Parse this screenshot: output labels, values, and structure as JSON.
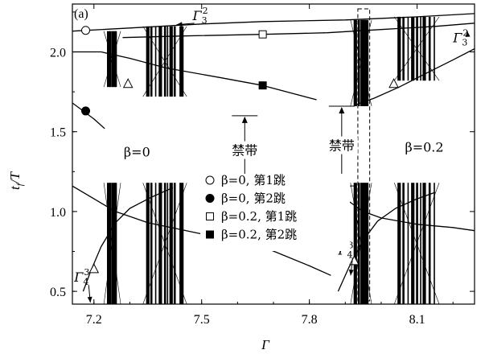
{
  "chart_data": {
    "type": "line",
    "panel_label": "(a)",
    "xlabel": "Γ",
    "ylabel": "t",
    "ylabel_sub": "f",
    "ylabel_tail": "/T",
    "xlim": [
      7.14,
      8.26
    ],
    "ylim": [
      0.42,
      2.3
    ],
    "x_ticks": [
      {
        "v": 7.2,
        "label": "7.2"
      },
      {
        "v": 7.5,
        "label": "7.5"
      },
      {
        "v": 7.8,
        "label": "7.8"
      },
      {
        "v": 8.1,
        "label": "8.1"
      }
    ],
    "y_ticks": [
      {
        "v": 0.5,
        "label": "0.5"
      },
      {
        "v": 1.0,
        "label": "1.0"
      },
      {
        "v": 1.5,
        "label": "1.5"
      },
      {
        "v": 2.0,
        "label": "2.0"
      }
    ],
    "curves": [
      {
        "id": "upper-first-jump",
        "points": [
          [
            7.14,
            2.13
          ],
          [
            7.3,
            2.15
          ],
          [
            7.5,
            2.175
          ],
          [
            7.67,
            2.19
          ],
          [
            7.9,
            2.2
          ],
          [
            8.1,
            2.22
          ],
          [
            8.26,
            2.24
          ]
        ]
      },
      {
        "id": "upper-second-jump",
        "points": [
          [
            7.28,
            2.09
          ],
          [
            7.45,
            2.1
          ],
          [
            7.67,
            2.11
          ],
          [
            7.85,
            2.12
          ],
          [
            8.0,
            2.14
          ],
          [
            8.15,
            2.16
          ],
          [
            8.26,
            2.18
          ]
        ]
      },
      {
        "id": "left-first-jump-falling",
        "points": [
          [
            7.14,
            2.0
          ],
          [
            7.22,
            2.0
          ],
          [
            7.3,
            1.96
          ],
          [
            7.4,
            1.9
          ],
          [
            7.55,
            1.84
          ],
          [
            7.67,
            1.79
          ],
          [
            7.82,
            1.7
          ]
        ]
      },
      {
        "id": "left-second-jump-falling",
        "points": [
          [
            7.14,
            1.68
          ],
          [
            7.17,
            1.63
          ],
          [
            7.2,
            1.58
          ],
          [
            7.23,
            1.52
          ]
        ]
      },
      {
        "id": "right-rising",
        "points": [
          [
            7.93,
            1.67
          ],
          [
            7.98,
            1.71
          ],
          [
            8.05,
            1.78
          ],
          [
            8.12,
            1.86
          ],
          [
            8.2,
            1.95
          ],
          [
            8.26,
            2.02
          ]
        ]
      },
      {
        "id": "lower-left-falling",
        "points": [
          [
            7.14,
            1.16
          ],
          [
            7.2,
            1.08
          ],
          [
            7.26,
            1.0
          ],
          [
            7.35,
            0.93
          ],
          [
            7.5,
            0.86
          ],
          [
            7.6,
            0.82
          ],
          [
            7.67,
            0.78
          ],
          [
            7.8,
            0.66
          ],
          [
            7.86,
            0.6
          ]
        ]
      },
      {
        "id": "lower-left-rising",
        "points": [
          [
            7.17,
            0.5
          ],
          [
            7.19,
            0.62
          ],
          [
            7.22,
            0.78
          ],
          [
            7.26,
            0.93
          ],
          [
            7.3,
            1.02
          ],
          [
            7.36,
            1.09
          ],
          [
            7.42,
            1.15
          ]
        ]
      },
      {
        "id": "lower-right-falling",
        "points": [
          [
            7.85,
            1.15
          ],
          [
            7.9,
            1.08
          ],
          [
            7.95,
            1.0
          ],
          [
            8.0,
            0.96
          ],
          [
            8.1,
            0.92
          ],
          [
            8.2,
            0.9
          ],
          [
            8.26,
            0.88
          ]
        ]
      },
      {
        "id": "lower-right-rising",
        "points": [
          [
            7.88,
            0.5
          ],
          [
            7.91,
            0.65
          ],
          [
            7.95,
            0.82
          ],
          [
            7.99,
            0.94
          ],
          [
            8.04,
            1.02
          ],
          [
            8.1,
            1.08
          ],
          [
            8.15,
            1.12
          ]
        ]
      }
    ],
    "bands": [
      {
        "xs": [
          7.241,
          7.246,
          7.251,
          7.256,
          7.261
        ],
        "y0": 0.42,
        "y1": 1.18
      },
      {
        "xs": [
          7.241,
          7.246,
          7.251,
          7.256,
          7.261
        ],
        "y0": 1.78,
        "y1": 2.13
      },
      {
        "xs": [
          7.35,
          7.36,
          7.372,
          7.385,
          7.398,
          7.405,
          7.415,
          7.425,
          7.44,
          7.445
        ],
        "y0": 0.42,
        "y1": 1.18
      },
      {
        "xs": [
          7.35,
          7.36,
          7.372,
          7.385,
          7.398,
          7.405,
          7.415,
          7.425,
          7.44,
          7.445
        ],
        "y0": 1.72,
        "y1": 2.16
      },
      {
        "xs": [
          7.928,
          7.938,
          7.944,
          7.948,
          7.952,
          7.956,
          7.96
        ],
        "y0": 0.42,
        "y1": 1.18
      },
      {
        "xs": [
          7.928,
          7.938,
          7.944,
          7.948,
          7.952,
          7.956,
          7.96
        ],
        "y0": 1.66,
        "y1": 2.2
      },
      {
        "xs": [
          8.05,
          8.062,
          8.075,
          8.088,
          8.1,
          8.11,
          8.12,
          8.135,
          8.148
        ],
        "y0": 0.42,
        "y1": 1.18
      },
      {
        "xs": [
          8.05,
          8.062,
          8.075,
          8.088,
          8.1,
          8.11,
          8.12,
          8.135,
          8.148
        ],
        "y0": 1.82,
        "y1": 2.22
      }
    ],
    "markers": [
      {
        "shape": "circle-open",
        "x": 7.177,
        "y": 2.135
      },
      {
        "shape": "circle-filled",
        "x": 7.177,
        "y": 1.63
      },
      {
        "shape": "square-open",
        "x": 7.67,
        "y": 2.11
      },
      {
        "shape": "square-filled",
        "x": 7.67,
        "y": 1.79
      },
      {
        "shape": "triangle-open",
        "x": 7.295,
        "y": 1.8
      },
      {
        "shape": "triangle-open",
        "x": 7.2,
        "y": 0.64
      },
      {
        "shape": "triangle-open",
        "x": 8.035,
        "y": 1.8
      },
      {
        "shape": "triangle-open",
        "x": 7.925,
        "y": 0.69
      }
    ],
    "gaps": [
      {
        "x": 7.62,
        "y_low": 1.16,
        "y_high": 1.6,
        "label": "禁带",
        "label_y": 1.37
      },
      {
        "x": 7.89,
        "y_low": 1.16,
        "y_high": 1.66,
        "label": "禁带",
        "label_y": 1.4
      }
    ],
    "region_labels": [
      {
        "text": "β=0",
        "x": 7.32,
        "y": 1.37
      },
      {
        "text": "β=0.2",
        "x": 8.12,
        "y": 1.4
      }
    ],
    "dashed_box": {
      "x0": 7.935,
      "x1": 7.968,
      "y0": 0.44,
      "y1": 2.27
    },
    "gamma_labels": [
      {
        "base": "Γ",
        "sub": "3",
        "sup": "2",
        "x": 7.475,
        "y": 2.2,
        "arrow_to": [
          7.43,
          2.17
        ]
      },
      {
        "base": "Γ",
        "sub": "3",
        "sup": "2",
        "x": 8.2,
        "y": 2.06,
        "arrow_to": [
          8.24,
          2.13
        ]
      },
      {
        "base": "Γ",
        "sub": "4",
        "sup": "3",
        "x": 7.145,
        "y": 0.56,
        "arrow_to": [
          7.19,
          0.43
        ]
      },
      {
        "base": "Γ",
        "sub": "4",
        "sup": "3",
        "x": 7.88,
        "y": 0.73,
        "arrow_to": [
          7.915,
          0.6
        ]
      }
    ],
    "legend": {
      "position": "center",
      "entries": [
        {
          "shape": "circle-open",
          "label": "β=0, 第1跳"
        },
        {
          "shape": "circle-filled",
          "label": "β=0, 第2跳"
        },
        {
          "shape": "square-open",
          "label": "β=0.2, 第1跳"
        },
        {
          "shape": "square-filled",
          "label": "β=0.2, 第2跳"
        }
      ]
    }
  }
}
